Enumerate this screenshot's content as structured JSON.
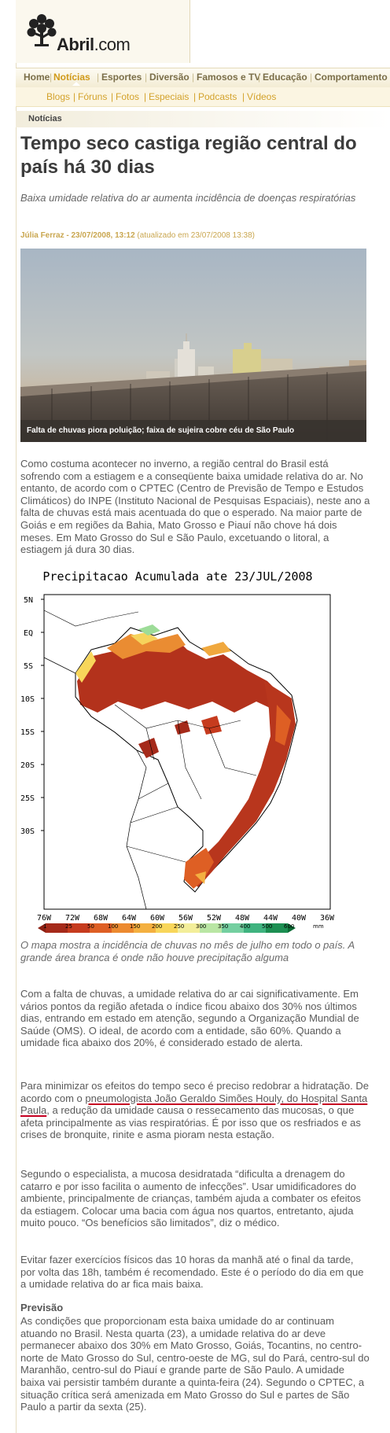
{
  "site": {
    "logo_text": "Abril",
    "logo_suffix": ".com"
  },
  "nav": {
    "items": [
      {
        "label": "Home",
        "active": false
      },
      {
        "label": "Notícias",
        "active": true
      },
      {
        "label": "Esportes",
        "active": false
      },
      {
        "label": "Diversão",
        "active": false
      },
      {
        "label": "Famosos e TV",
        "active": false
      },
      {
        "label": "Educação",
        "active": false
      },
      {
        "label": "Comportamento",
        "active": false
      }
    ]
  },
  "subnav": {
    "items": [
      "Blogs",
      "Fóruns",
      "Fotos",
      "Especiais",
      "Podcasts",
      "Vídeos"
    ]
  },
  "section": {
    "label": "Notícias"
  },
  "article": {
    "headline": "Tempo seco castiga região central do país há 30 dias",
    "dek": "Baixa umidade relativa do ar aumenta incidência de doenças respiratórias",
    "byline_author": "Júlia Ferraz - 23/07/2008, 13:12",
    "byline_updated": " (atualizado em 23/07/2008 13:38)",
    "photo_caption": "Falta de chuvas piora poluição; faixa de sujeira cobre céu de São Paulo",
    "p1": "Como costuma acontecer no inverno, a região central do Brasil está sofrendo com a estiagem e a conseqüente baixa umidade relativa do ar. No entanto, de acordo com o CPTEC (Centro de Previsão de Tempo e Estudos Climáticos) do INPE (Instituto Nacional de Pesquisas Espaciais), neste ano a falta de chuvas está mais acentuada do que o esperado. Na maior parte de Goiás e em regiões da Bahia, Mato Grosso e Piauí não chove há dois meses. Em Mato Grosso do Sul e São Paulo, excetuando o litoral, a estiagem já dura 30 dias.",
    "map_caption": "O mapa mostra a incidência de chuvas no mês de julho em todo o país. A grande área branca é onde não houve precipitação alguma",
    "p2": "Com a falta de chuvas, a umidade relativa do ar cai significativamente. Em vários pontos da região afetada o índice ficou abaixo dos 30% nos últimos dias, entrando em estado em atenção, segundo a Organização Mundial de Saúde (OMS). O ideal, de acordo com a entidade, são 60%. Quando a umidade fica abaixo dos 20%, é considerado estado de alerta.",
    "p3_before": "Para minimizar os efeitos do tempo seco é preciso redobrar a hidratação. De acordo com o ",
    "p3_highlight": "pneumologista João Geraldo Simões Houly, do Hospital Santa Paula",
    "p3_after": ", a redução da umidade causa o ressecamento das mucosas, o que afeta principalmente as vias respiratórias. É por isso que os resfriados e as crises de bronquite, rinite e asma pioram nesta estação.",
    "p4": "Segundo o especialista, a mucosa desidratada “dificulta a drenagem do catarro e por isso facilita o aumento de infecções”. Usar umidificadores do ambiente, principalmente de crianças, também ajuda a combater os efeitos da estiagem. Colocar uma bacia com água nos quartos, entretanto, ajuda muito pouco. “Os benefícios são limitados”, diz o médico.",
    "p5": "Evitar fazer exercícios físicos das 10 horas da manhã até o final da tarde, por volta das 18h, também é recomendado. Este é o período do dia em que a umidade relativa do ar fica mais baixa.",
    "forecast_heading": "Previsão",
    "p6": "As condições que proporcionam esta baixa umidade do ar continuam atuando no Brasil. Nesta quarta (23), a umidade relativa do ar deve permanecer abaixo dos 30% em Mato Grosso, Goiás, Tocantins, no centro-norte de Mato Grosso do Sul, centro-oeste de MG, sul do Pará, centro-sul do Maranhão, centro-sul do Piauí e grande parte de São Paulo. A umidade baixa vai persistir também durante a quinta-feira (24). Segundo o CPTEC, a situação crítica será amenizada em Mato Grosso do Sul e partes de São Paulo a partir da sexta (25)."
  },
  "map": {
    "title": "Precipitacao Acumulada ate 23/JUL/2008",
    "lat_labels": [
      "5N",
      "EQ",
      "5S",
      "10S",
      "15S",
      "20S",
      "25S",
      "30S"
    ],
    "lon_labels": [
      "76W",
      "72W",
      "68W",
      "64W",
      "60W",
      "56W",
      "52W",
      "48W",
      "44W",
      "40W",
      "36W"
    ],
    "legend_values": [
      "1",
      "25",
      "50",
      "100",
      "150",
      "200",
      "250",
      "300",
      "350",
      "400",
      "500",
      "600"
    ],
    "legend_unit": "mm",
    "legend_colors": [
      "#a52a1a",
      "#c63b1e",
      "#de5f24",
      "#ec8a30",
      "#f4b040",
      "#f8d65a",
      "#f3ee9a",
      "#b9e6a4",
      "#74cfa0",
      "#3fb37f",
      "#1c8f52",
      "#0a6b34"
    ]
  }
}
